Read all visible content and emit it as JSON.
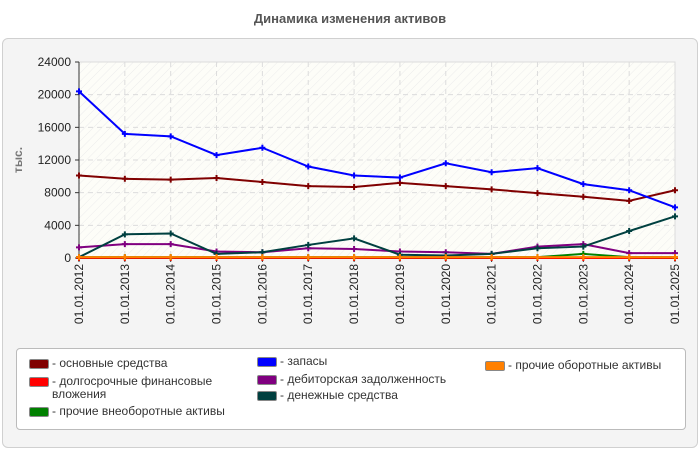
{
  "chart_data": {
    "type": "line",
    "title": "Динамика изменения активов",
    "ylabel": "тыс.",
    "xlabel": "",
    "ylim": [
      0,
      24000
    ],
    "yticks": [
      0,
      4000,
      8000,
      12000,
      16000,
      20000,
      24000
    ],
    "grid": true,
    "legend_position": "bottom",
    "categories": [
      "01.01.2012",
      "01.01.2013",
      "01.01.2014",
      "01.01.2015",
      "01.01.2016",
      "01.01.2017",
      "01.01.2018",
      "01.01.2019",
      "01.01.2020",
      "01.01.2021",
      "01.01.2022",
      "01.01.2023",
      "01.01.2024",
      "01.01.2025"
    ],
    "series": [
      {
        "name": "основные средства",
        "color": "#800000",
        "values": [
          10100,
          9700,
          9600,
          9800,
          9300,
          8800,
          8700,
          9200,
          8800,
          8400,
          7950,
          7500,
          7000,
          8300
        ]
      },
      {
        "name": "долгосрочные финансовые вложения",
        "color": "#ff0000",
        "values": [
          0,
          0,
          0,
          0,
          0,
          0,
          0,
          0,
          0,
          0,
          0,
          0,
          0,
          0
        ]
      },
      {
        "name": "прочие внеоборотные активы",
        "color": "#008000",
        "values": [
          100,
          100,
          100,
          100,
          100,
          100,
          100,
          100,
          100,
          100,
          100,
          500,
          100,
          100
        ]
      },
      {
        "name": "запасы",
        "color": "#0000ff",
        "values": [
          20400,
          15200,
          14900,
          12600,
          13500,
          11200,
          10100,
          9850,
          11600,
          10500,
          11000,
          9050,
          8300,
          6200
        ]
      },
      {
        "name": "дебиторская задолженность",
        "color": "#800080",
        "values": [
          1300,
          1700,
          1700,
          800,
          700,
          1200,
          1100,
          800,
          700,
          500,
          1400,
          1700,
          600,
          600
        ]
      },
      {
        "name": "денежные средства",
        "color": "#004040",
        "values": [
          100,
          2900,
          3000,
          500,
          700,
          1600,
          2400,
          400,
          300,
          500,
          1200,
          1400,
          3300,
          5100
        ]
      },
      {
        "name": "прочие оборотные активы",
        "color": "#ff8000",
        "values": [
          100,
          100,
          100,
          100,
          100,
          100,
          100,
          100,
          100,
          100,
          100,
          100,
          100,
          100
        ]
      }
    ]
  }
}
